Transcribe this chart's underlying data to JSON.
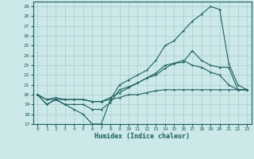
{
  "xlabel": "Humidex (Indice chaleur)",
  "bg_color": "#cce8e8",
  "grid_color": "#aad2d2",
  "line_color": "#1a6060",
  "xlim": [
    -0.5,
    23.5
  ],
  "ylim": [
    17,
    29.5
  ],
  "xticks": [
    0,
    1,
    2,
    3,
    4,
    5,
    6,
    7,
    8,
    9,
    10,
    11,
    12,
    13,
    14,
    15,
    16,
    17,
    18,
    19,
    20,
    21,
    22,
    23
  ],
  "yticks": [
    17,
    18,
    19,
    20,
    21,
    22,
    23,
    24,
    25,
    26,
    27,
    28,
    29
  ],
  "lines": [
    {
      "x": [
        0,
        1,
        2,
        3,
        4,
        5,
        6,
        7,
        8,
        9,
        10,
        11,
        12,
        13,
        14,
        15,
        16,
        17,
        18,
        19,
        20,
        21,
        22,
        23
      ],
      "y": [
        20,
        19,
        19.5,
        19,
        18.5,
        18,
        17,
        17,
        19.5,
        21,
        21.5,
        22,
        22.5,
        23.5,
        25,
        25.5,
        26.5,
        27.5,
        28.2,
        29,
        28.7,
        23.2,
        21,
        20.5
      ]
    },
    {
      "x": [
        0,
        1,
        2,
        3,
        4,
        5,
        6,
        7,
        8,
        9,
        10,
        11,
        12,
        13,
        14,
        15,
        16,
        17,
        18,
        19,
        20,
        21,
        22,
        23
      ],
      "y": [
        20,
        19,
        19.5,
        19,
        19,
        19,
        18.5,
        18.5,
        19.2,
        20.5,
        20.8,
        21.2,
        21.7,
        22.2,
        23,
        23.2,
        23.3,
        24.5,
        23.5,
        23,
        22.8,
        22.8,
        20.5,
        20.5
      ]
    },
    {
      "x": [
        0,
        1,
        2,
        3,
        4,
        5,
        6,
        7,
        8,
        9,
        10,
        11,
        12,
        13,
        14,
        15,
        16,
        17,
        18,
        19,
        20,
        21,
        22,
        23
      ],
      "y": [
        20,
        19.5,
        19.5,
        19.5,
        19.5,
        19.5,
        19.3,
        19.3,
        19.5,
        19.7,
        20,
        20,
        20.2,
        20.4,
        20.5,
        20.5,
        20.5,
        20.5,
        20.5,
        20.5,
        20.5,
        20.5,
        20.5,
        20.5
      ]
    },
    {
      "x": [
        0,
        1,
        2,
        3,
        4,
        5,
        6,
        7,
        8,
        9,
        10,
        11,
        12,
        13,
        14,
        15,
        16,
        17,
        18,
        19,
        20,
        21,
        22,
        23
      ],
      "y": [
        20,
        19.5,
        19.7,
        19.5,
        19.5,
        19.5,
        19.3,
        19.3,
        19.7,
        20.2,
        20.7,
        21.2,
        21.7,
        22,
        22.7,
        23.2,
        23.5,
        23,
        22.8,
        22.3,
        22,
        21,
        20.5,
        20.5
      ]
    }
  ]
}
